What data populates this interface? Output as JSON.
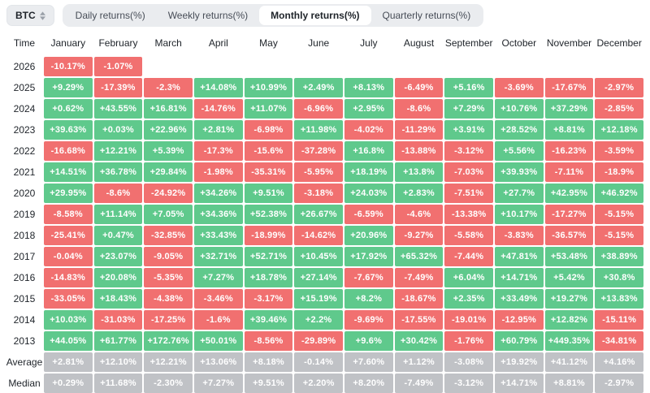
{
  "controls": {
    "symbol": "BTC",
    "symbol_icon": "updown-arrows-icon",
    "tabs": [
      {
        "label": "Daily returns(%)",
        "active": false
      },
      {
        "label": "Weekly returns(%)",
        "active": false
      },
      {
        "label": "Monthly returns(%)",
        "active": true
      },
      {
        "label": "Quarterly returns(%)",
        "active": false
      }
    ]
  },
  "colors": {
    "positive": "#5fc98c",
    "negative": "#f17070",
    "neutral": "#c0c2c6",
    "tab_bg": "#eaecef",
    "active_tab_bg": "#ffffff",
    "text_dark": "#1e2329"
  },
  "chart_data": {
    "type": "heatmap",
    "title": "BTC Monthly returns(%)",
    "time_header": "Time",
    "months": [
      "January",
      "February",
      "March",
      "April",
      "May",
      "June",
      "July",
      "August",
      "September",
      "October",
      "November",
      "December"
    ],
    "rows": [
      {
        "label": "2026",
        "style": "signed",
        "cells": [
          "-10.17%",
          "-1.07%",
          null,
          null,
          null,
          null,
          null,
          null,
          null,
          null,
          null,
          null
        ]
      },
      {
        "label": "2025",
        "style": "signed",
        "cells": [
          "+9.29%",
          "-17.39%",
          "-2.3%",
          "+14.08%",
          "+10.99%",
          "+2.49%",
          "+8.13%",
          "-6.49%",
          "+5.16%",
          "-3.69%",
          "-17.67%",
          "-2.97%"
        ]
      },
      {
        "label": "2024",
        "style": "signed",
        "cells": [
          "+0.62%",
          "+43.55%",
          "+16.81%",
          "-14.76%",
          "+11.07%",
          "-6.96%",
          "+2.95%",
          "-8.6%",
          "+7.29%",
          "+10.76%",
          "+37.29%",
          "-2.85%"
        ]
      },
      {
        "label": "2023",
        "style": "signed",
        "cells": [
          "+39.63%",
          "+0.03%",
          "+22.96%",
          "+2.81%",
          "-6.98%",
          "+11.98%",
          "-4.02%",
          "-11.29%",
          "+3.91%",
          "+28.52%",
          "+8.81%",
          "+12.18%"
        ]
      },
      {
        "label": "2022",
        "style": "signed",
        "cells": [
          "-16.68%",
          "+12.21%",
          "+5.39%",
          "-17.3%",
          "-15.6%",
          "-37.28%",
          "+16.8%",
          "-13.88%",
          "-3.12%",
          "+5.56%",
          "-16.23%",
          "-3.59%"
        ]
      },
      {
        "label": "2021",
        "style": "signed",
        "cells": [
          "+14.51%",
          "+36.78%",
          "+29.84%",
          "-1.98%",
          "-35.31%",
          "-5.95%",
          "+18.19%",
          "+13.8%",
          "-7.03%",
          "+39.93%",
          "-7.11%",
          "-18.9%"
        ]
      },
      {
        "label": "2020",
        "style": "signed",
        "cells": [
          "+29.95%",
          "-8.6%",
          "-24.92%",
          "+34.26%",
          "+9.51%",
          "-3.18%",
          "+24.03%",
          "+2.83%",
          "-7.51%",
          "+27.7%",
          "+42.95%",
          "+46.92%"
        ]
      },
      {
        "label": "2019",
        "style": "signed",
        "cells": [
          "-8.58%",
          "+11.14%",
          "+7.05%",
          "+34.36%",
          "+52.38%",
          "+26.67%",
          "-6.59%",
          "-4.6%",
          "-13.38%",
          "+10.17%",
          "-17.27%",
          "-5.15%"
        ]
      },
      {
        "label": "2018",
        "style": "signed",
        "cells": [
          "-25.41%",
          "+0.47%",
          "-32.85%",
          "+33.43%",
          "-18.99%",
          "-14.62%",
          "+20.96%",
          "-9.27%",
          "-5.58%",
          "-3.83%",
          "-36.57%",
          "-5.15%"
        ]
      },
      {
        "label": "2017",
        "style": "signed",
        "cells": [
          "-0.04%",
          "+23.07%",
          "-9.05%",
          "+32.71%",
          "+52.71%",
          "+10.45%",
          "+17.92%",
          "+65.32%",
          "-7.44%",
          "+47.81%",
          "+53.48%",
          "+38.89%"
        ]
      },
      {
        "label": "2016",
        "style": "signed",
        "cells": [
          "-14.83%",
          "+20.08%",
          "-5.35%",
          "+7.27%",
          "+18.78%",
          "+27.14%",
          "-7.67%",
          "-7.49%",
          "+6.04%",
          "+14.71%",
          "+5.42%",
          "+30.8%"
        ]
      },
      {
        "label": "2015",
        "style": "signed",
        "cells": [
          "-33.05%",
          "+18.43%",
          "-4.38%",
          "-3.46%",
          "-3.17%",
          "+15.19%",
          "+8.2%",
          "-18.67%",
          "+2.35%",
          "+33.49%",
          "+19.27%",
          "+13.83%"
        ]
      },
      {
        "label": "2014",
        "style": "signed",
        "cells": [
          "+10.03%",
          "-31.03%",
          "-17.25%",
          "-1.6%",
          "+39.46%",
          "+2.2%",
          "-9.69%",
          "-17.55%",
          "-19.01%",
          "-12.95%",
          "+12.82%",
          "-15.11%"
        ]
      },
      {
        "label": "2013",
        "style": "signed",
        "cells": [
          "+44.05%",
          "+61.77%",
          "+172.76%",
          "+50.01%",
          "-8.56%",
          "-29.89%",
          "+9.6%",
          "+30.42%",
          "-1.76%",
          "+60.79%",
          "+449.35%",
          "-34.81%"
        ]
      },
      {
        "label": "Average",
        "style": "neutral",
        "cells": [
          "+2.81%",
          "+12.10%",
          "+12.21%",
          "+13.06%",
          "+8.18%",
          "-0.14%",
          "+7.60%",
          "+1.12%",
          "-3.08%",
          "+19.92%",
          "+41.12%",
          "+4.16%"
        ]
      },
      {
        "label": "Median",
        "style": "neutral",
        "cells": [
          "+0.29%",
          "+11.68%",
          "-2.30%",
          "+7.27%",
          "+9.51%",
          "+2.20%",
          "+8.20%",
          "-7.49%",
          "-3.12%",
          "+14.71%",
          "+8.81%",
          "-2.97%"
        ]
      }
    ]
  }
}
